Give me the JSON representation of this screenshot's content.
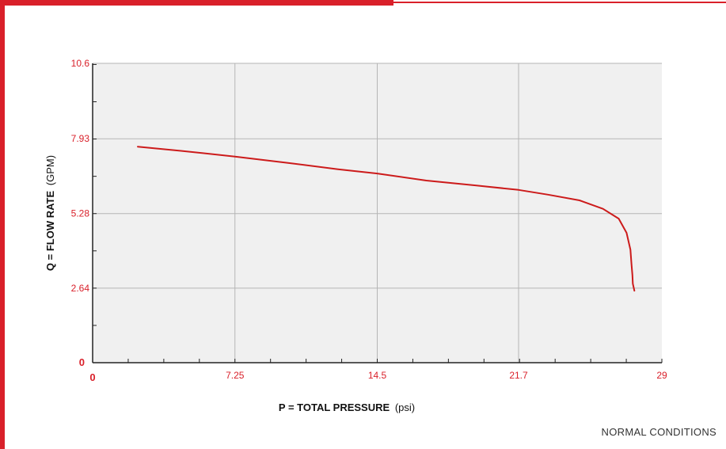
{
  "colors": {
    "accent": "#d9202a",
    "plot_background": "#f0f0f0",
    "grid": "#b5b5b5",
    "axis": "#222222",
    "line": "#cc1b1b"
  },
  "labels": {
    "footer": "NORMAL CONDITIONS"
  },
  "chart_data": {
    "type": "line",
    "title": "",
    "xlabel_bold": "P = TOTAL PRESSURE",
    "xlabel_unit": "(psi)",
    "ylabel_bold": "Q = FLOW RATE",
    "ylabel_unit": "(GPM)",
    "xlim": [
      0,
      29
    ],
    "ylim": [
      0,
      10.6
    ],
    "x_ticks": [
      {
        "value": 0,
        "label": "0"
      },
      {
        "value": 7.25,
        "label": "7.25"
      },
      {
        "value": 14.5,
        "label": "14.5"
      },
      {
        "value": 21.7,
        "label": "21.7"
      },
      {
        "value": 29,
        "label": "29"
      }
    ],
    "y_ticks": [
      {
        "value": 0,
        "label": "0"
      },
      {
        "value": 2.64,
        "label": "2.64"
      },
      {
        "value": 5.28,
        "label": "5.28"
      },
      {
        "value": 7.93,
        "label": "7.93"
      },
      {
        "value": 10.6,
        "label": "10.6"
      }
    ],
    "grid": true,
    "series": [
      {
        "x": [
          2.3,
          4.5,
          7.25,
          10.0,
          12.5,
          14.5,
          17.0,
          19.5,
          21.7,
          23.2,
          24.8,
          26.0,
          26.8,
          27.2,
          27.4,
          27.45,
          27.5,
          27.52,
          27.6
        ],
        "y": [
          7.65,
          7.5,
          7.3,
          7.07,
          6.85,
          6.7,
          6.45,
          6.28,
          6.12,
          5.95,
          5.75,
          5.45,
          5.1,
          4.6,
          4.0,
          3.5,
          3.1,
          2.8,
          2.55
        ]
      }
    ]
  }
}
